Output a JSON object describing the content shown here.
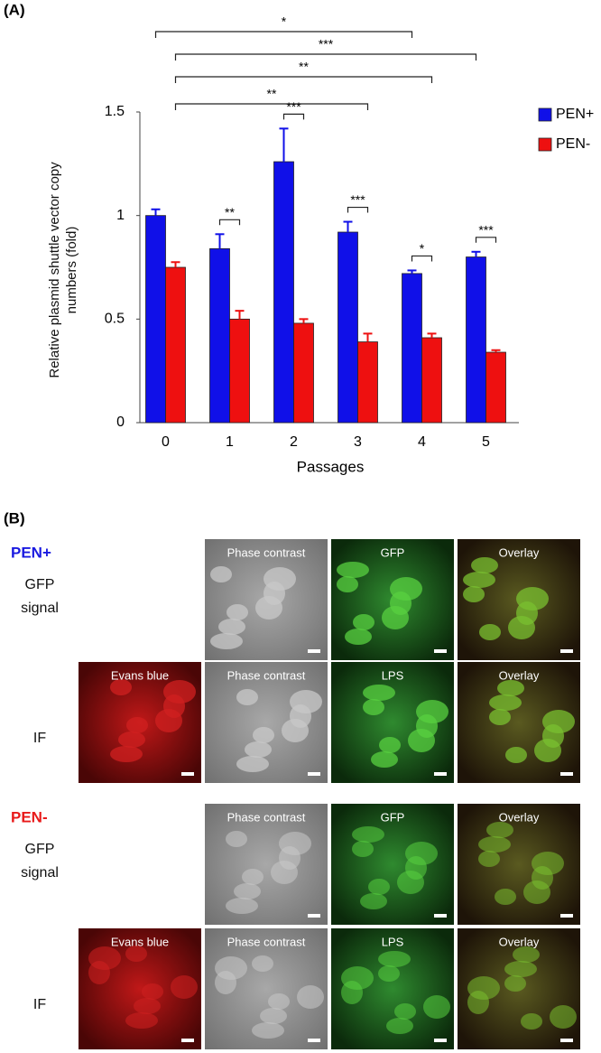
{
  "chart_data": {
    "type": "bar",
    "panel_label": "(A)",
    "y_label": "Relative plasmid shuttle vector copy numbers (fold)",
    "x_label": "Passages",
    "categories": [
      "0",
      "1",
      "2",
      "3",
      "4",
      "5"
    ],
    "series": [
      {
        "name": "PEN+",
        "color": "#1010e8",
        "values": [
          1.0,
          0.84,
          1.26,
          0.92,
          0.72,
          0.8
        ],
        "errors": [
          0.03,
          0.07,
          0.16,
          0.05,
          0.015,
          0.025
        ]
      },
      {
        "name": "PEN-",
        "color": "#ee1010",
        "values": [
          0.75,
          0.5,
          0.48,
          0.39,
          0.41,
          0.34
        ],
        "errors": [
          0.025,
          0.04,
          0.02,
          0.04,
          0.02,
          0.01
        ]
      }
    ],
    "ylim": [
      0,
      1.5
    ],
    "yticks": [
      0,
      0.5,
      1,
      1.5
    ],
    "pair_labels": [
      null,
      "**",
      "***",
      "***",
      "*",
      "***"
    ],
    "span_labels": [
      "*",
      "***",
      "**",
      "**"
    ]
  },
  "panel_b": {
    "label": "(B)",
    "groups": [
      {
        "name": "PEN+",
        "rows": [
          {
            "label": "GFP signal",
            "panels": [
              null,
              "Phase contrast",
              "GFP",
              "Overlay"
            ]
          },
          {
            "label": "IF",
            "panels": [
              "Evans blue",
              "Phase contrast",
              "LPS",
              "Overlay"
            ]
          }
        ]
      },
      {
        "name": "PEN-",
        "rows": [
          {
            "label": "GFP signal",
            "panels": [
              null,
              "Phase contrast",
              "GFP",
              "Overlay"
            ]
          },
          {
            "label": "IF",
            "panels": [
              "Evans blue",
              "Phase contrast",
              "LPS",
              "Overlay"
            ]
          }
        ]
      }
    ]
  }
}
